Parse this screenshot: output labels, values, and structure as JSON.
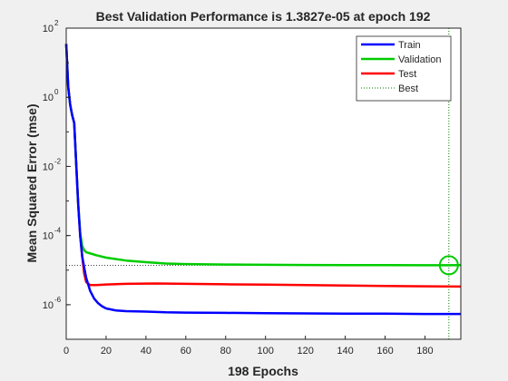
{
  "figure": {
    "background": "#f0f0f0"
  },
  "chart_data": {
    "type": "line",
    "title": "Best Validation Performance is 1.3827e-05 at epoch 192",
    "xlabel": "198 Epochs",
    "ylabel": "Mean Squared Error  (mse)",
    "xlim": [
      0,
      198
    ],
    "ylim": [
      1e-07,
      100
    ],
    "yscale": "log",
    "xticks": [
      0,
      20,
      40,
      60,
      80,
      100,
      120,
      140,
      160,
      180
    ],
    "yticks": [
      {
        "value": 1e-06,
        "label_base": "10",
        "label_exp": "-6"
      },
      {
        "value": 0.0001,
        "label_base": "10",
        "label_exp": "-4"
      },
      {
        "value": 0.01,
        "label_base": "10",
        "label_exp": "-2"
      },
      {
        "value": 1,
        "label_base": "10",
        "label_exp": "0"
      },
      {
        "value": 100,
        "label_base": "10",
        "label_exp": "2"
      }
    ],
    "grid": false,
    "legend_position": "top-right",
    "best": {
      "epoch": 192,
      "value": 1.3827e-05
    },
    "series": [
      {
        "name": "Train",
        "color": "#0000ff",
        "points": [
          [
            0,
            35
          ],
          [
            1,
            2
          ],
          [
            2,
            0.6
          ],
          [
            3,
            0.3
          ],
          [
            4,
            0.18
          ],
          [
            5,
            0.012
          ],
          [
            6,
            0.0008
          ],
          [
            7,
            0.0001
          ],
          [
            8,
            2.5e-05
          ],
          [
            9,
            1.2e-05
          ],
          [
            10,
            6e-06
          ],
          [
            12,
            2.5e-06
          ],
          [
            14,
            1.5e-06
          ],
          [
            16,
            1.1e-06
          ],
          [
            18,
            9e-07
          ],
          [
            20,
            7.8e-07
          ],
          [
            25,
            6.8e-07
          ],
          [
            30,
            6.5e-07
          ],
          [
            40,
            6.3e-07
          ],
          [
            50,
            6e-07
          ],
          [
            60,
            5.9e-07
          ],
          [
            80,
            5.8e-07
          ],
          [
            100,
            5.7e-07
          ],
          [
            120,
            5.6e-07
          ],
          [
            140,
            5.5e-07
          ],
          [
            160,
            5.5e-07
          ],
          [
            180,
            5.4e-07
          ],
          [
            198,
            5.4e-07
          ]
        ]
      },
      {
        "name": "Validation",
        "color": "#00cc00",
        "points": [
          [
            0,
            35
          ],
          [
            1,
            2
          ],
          [
            2,
            0.6
          ],
          [
            3,
            0.3
          ],
          [
            4,
            0.18
          ],
          [
            5,
            0.012
          ],
          [
            6,
            0.0008
          ],
          [
            7,
            0.00012
          ],
          [
            8,
            5e-05
          ],
          [
            9,
            3.8e-05
          ],
          [
            10,
            3.3e-05
          ],
          [
            15,
            2.7e-05
          ],
          [
            20,
            2.3e-05
          ],
          [
            30,
            1.9e-05
          ],
          [
            40,
            1.7e-05
          ],
          [
            50,
            1.55e-05
          ],
          [
            60,
            1.5e-05
          ],
          [
            80,
            1.45e-05
          ],
          [
            100,
            1.43e-05
          ],
          [
            120,
            1.41e-05
          ],
          [
            140,
            1.4e-05
          ],
          [
            160,
            1.39e-05
          ],
          [
            180,
            1.385e-05
          ],
          [
            192,
            1.3827e-05
          ],
          [
            198,
            1.39e-05
          ]
        ]
      },
      {
        "name": "Test",
        "color": "#ff0000",
        "points": [
          [
            0,
            35
          ],
          [
            1,
            2
          ],
          [
            2,
            0.6
          ],
          [
            3,
            0.3
          ],
          [
            4,
            0.18
          ],
          [
            5,
            0.012
          ],
          [
            6,
            0.0008
          ],
          [
            7,
            0.0001
          ],
          [
            8,
            2.5e-05
          ],
          [
            9,
            8e-06
          ],
          [
            10,
            4.5e-06
          ],
          [
            12,
            3.7e-06
          ],
          [
            15,
            3.7e-06
          ],
          [
            20,
            3.85e-06
          ],
          [
            30,
            4e-06
          ],
          [
            45,
            4.1e-06
          ],
          [
            60,
            4e-06
          ],
          [
            80,
            3.9e-06
          ],
          [
            100,
            3.8e-06
          ],
          [
            120,
            3.7e-06
          ],
          [
            140,
            3.6e-06
          ],
          [
            160,
            3.5e-06
          ],
          [
            180,
            3.4e-06
          ],
          [
            198,
            3.35e-06
          ]
        ]
      },
      {
        "name": "Best",
        "color": "#008000",
        "style": "dotted"
      }
    ]
  }
}
